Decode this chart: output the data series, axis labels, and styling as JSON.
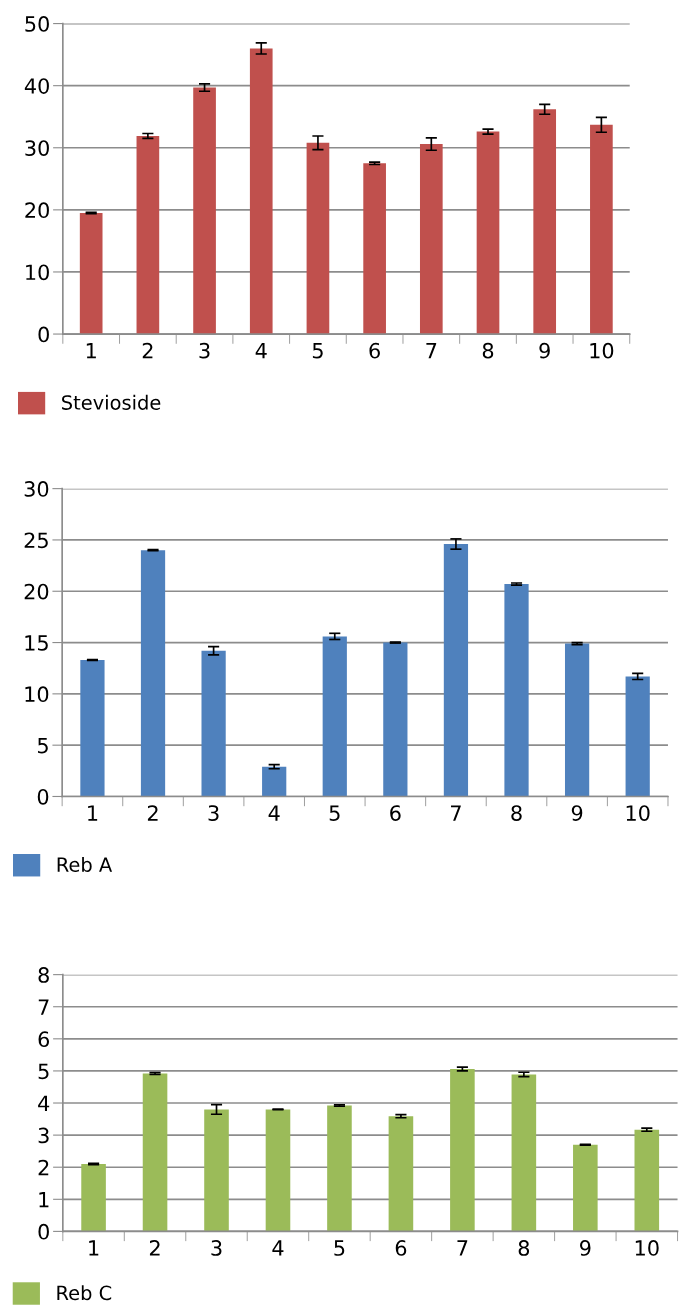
{
  "chart_data": [
    {
      "type": "bar",
      "categories": [
        "1",
        "2",
        "3",
        "4",
        "5",
        "6",
        "7",
        "8",
        "9",
        "10"
      ],
      "ylim": [
        0,
        50
      ],
      "yticks": [
        0,
        10,
        20,
        30,
        40,
        50
      ],
      "grid": "y",
      "legend": "bottom",
      "series": [
        {
          "name": "Stevioside",
          "color": "#c0504d",
          "values": [
            19.5,
            31.9,
            39.7,
            46.0,
            30.8,
            27.5,
            30.6,
            32.6,
            36.2,
            33.7
          ],
          "errors": [
            0.1,
            0.4,
            0.6,
            0.9,
            1.1,
            0.2,
            1.0,
            0.4,
            0.8,
            1.2
          ]
        }
      ]
    },
    {
      "type": "bar",
      "categories": [
        "1",
        "2",
        "3",
        "4",
        "5",
        "6",
        "7",
        "8",
        "9",
        "10"
      ],
      "ylim": [
        0,
        30
      ],
      "yticks": [
        0,
        5,
        10,
        15,
        20,
        25,
        30
      ],
      "grid": "y",
      "legend": "bottom",
      "series": [
        {
          "name": "Reb A",
          "color": "#4f81bd",
          "values": [
            13.3,
            24.0,
            14.2,
            2.9,
            15.6,
            15.0,
            24.6,
            20.7,
            14.9,
            11.7
          ],
          "errors": [
            0.05,
            0.05,
            0.4,
            0.2,
            0.3,
            0.05,
            0.5,
            0.1,
            0.1,
            0.3
          ]
        }
      ]
    },
    {
      "type": "bar",
      "categories": [
        "1",
        "2",
        "3",
        "4",
        "5",
        "6",
        "7",
        "8",
        "9",
        "10"
      ],
      "ylim": [
        0,
        8
      ],
      "yticks": [
        0,
        1,
        2,
        3,
        4,
        5,
        6,
        7,
        8
      ],
      "grid": "y",
      "legend": "bottom",
      "series": [
        {
          "name": "Reb C",
          "color": "#9bbb59",
          "values": [
            2.1,
            4.92,
            3.8,
            3.8,
            3.92,
            3.59,
            5.06,
            4.89,
            2.7,
            3.17
          ],
          "errors": [
            0.02,
            0.03,
            0.15,
            0.01,
            0.02,
            0.05,
            0.06,
            0.07,
            0.01,
            0.05
          ]
        }
      ]
    }
  ]
}
